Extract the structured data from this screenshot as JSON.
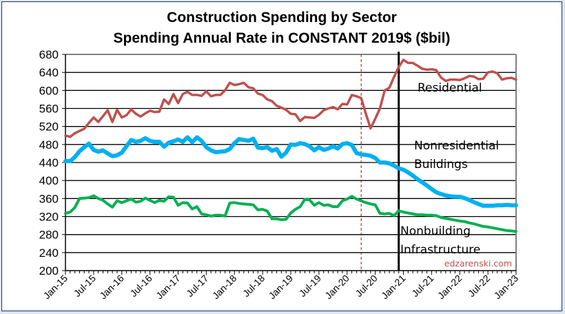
{
  "chart_data": {
    "type": "line",
    "title": "Construction Spending by Sector",
    "subtitle": "Spending Annual Rate in CONSTANT 2019$ ($bil)",
    "xlabel": "",
    "ylabel": "",
    "ylim": [
      200,
      680
    ],
    "yticks": [
      200,
      240,
      280,
      320,
      360,
      400,
      440,
      480,
      520,
      560,
      600,
      640,
      680
    ],
    "grid": true,
    "legend": "none",
    "x_start": "Jan-15",
    "x_end": "Jan-23",
    "x_tick_labels": [
      "Jan-15",
      "Jul-15",
      "Jan-16",
      "Jul-16",
      "Jan-17",
      "Jul-17",
      "Jan-18",
      "Jul-18",
      "Jan-19",
      "Jul-19",
      "Jan-20",
      "Jul-20",
      "Jan-21",
      "Jul-21",
      "Jan-22",
      "Jul-22",
      "Jan-23"
    ],
    "series": [
      {
        "name": "Residential",
        "color": "#c0504d",
        "values": [
          500,
          497,
          505,
          510,
          515,
          528,
          540,
          530,
          543,
          556,
          530,
          557,
          540,
          545,
          558,
          548,
          542,
          549,
          555,
          552,
          553,
          580,
          570,
          592,
          572,
          592,
          597,
          590,
          590,
          588,
          598,
          587,
          590,
          590,
          600,
          617,
          612,
          614,
          617,
          607,
          605,
          593,
          590,
          580,
          576,
          566,
          562,
          557,
          548,
          547,
          532,
          541,
          540,
          539,
          546,
          556,
          560,
          563,
          558,
          570,
          569,
          590,
          587,
          583,
          548,
          516,
          537,
          560,
          600,
          606,
          630,
          652,
          668,
          661,
          661,
          655,
          648,
          646,
          647,
          645,
          629,
          621,
          624,
          624,
          623,
          627,
          632,
          631,
          625,
          626,
          640,
          642,
          638,
          624,
          627,
          628,
          624
        ]
      },
      {
        "name": "Nonresidential Buildings",
        "color": "#00b0f0",
        "values": [
          443,
          443,
          452,
          465,
          474,
          482,
          468,
          464,
          467,
          460,
          454,
          456,
          462,
          476,
          490,
          486,
          488,
          494,
          488,
          486,
          486,
          475,
          484,
          487,
          491,
          486,
          496,
          485,
          496,
          488,
          474,
          467,
          463,
          464,
          465,
          470,
          483,
          492,
          490,
          488,
          493,
          473,
          472,
          474,
          466,
          470,
          453,
          462,
          480,
          479,
          483,
          481,
          476,
          467,
          474,
          468,
          471,
          476,
          471,
          481,
          483,
          479,
          461,
          458,
          457,
          455,
          450,
          440,
          440,
          438,
          433,
          427,
          424,
          418,
          411,
          403,
          396,
          389,
          381,
          374,
          370,
          367,
          365,
          364,
          364,
          361,
          357,
          352,
          348,
          344,
          344,
          344,
          345,
          345,
          346,
          345,
          345
        ]
      },
      {
        "name": "Nonbuilding Infrastructure",
        "color": "#00b050",
        "values": [
          327,
          330,
          340,
          360,
          361,
          362,
          366,
          360,
          356,
          348,
          341,
          355,
          351,
          355,
          359,
          352,
          354,
          361,
          356,
          351,
          356,
          354,
          364,
          363,
          345,
          351,
          350,
          337,
          342,
          326,
          324,
          321,
          323,
          323,
          321,
          350,
          351,
          349,
          348,
          347,
          346,
          335,
          336,
          332,
          315,
          315,
          313,
          314,
          328,
          336,
          342,
          358,
          357,
          345,
          351,
          345,
          346,
          342,
          342,
          355,
          359,
          365,
          359,
          355,
          351,
          348,
          346,
          327,
          326,
          327,
          322,
          333,
          330,
          328,
          326,
          324,
          324,
          323,
          323,
          322,
          318,
          316,
          314,
          312,
          310,
          309,
          306,
          304,
          301,
          298,
          297,
          295,
          293,
          291,
          289,
          288,
          287
        ]
      }
    ],
    "annotations": [
      {
        "text": "Residential",
        "series": "Residential"
      },
      {
        "text": "Nonresidential",
        "series": "Nonresidential Buildings"
      },
      {
        "text": "Buildings",
        "series": "Nonresidential Buildings"
      },
      {
        "text": "Nonbuilding",
        "series": "Nonbuilding Infrastructure"
      },
      {
        "text": "Infrastructure",
        "series": "Nonbuilding Infrastructure"
      },
      {
        "text": "edzarenski.com",
        "series": null
      }
    ],
    "reference_lines": [
      {
        "name": "covid-start",
        "x": "Apr-20",
        "style": "dashed",
        "color": "#c00000"
      },
      {
        "name": "forecast-start",
        "x": "Dec-20",
        "style": "solid",
        "color": "#000000"
      }
    ]
  }
}
